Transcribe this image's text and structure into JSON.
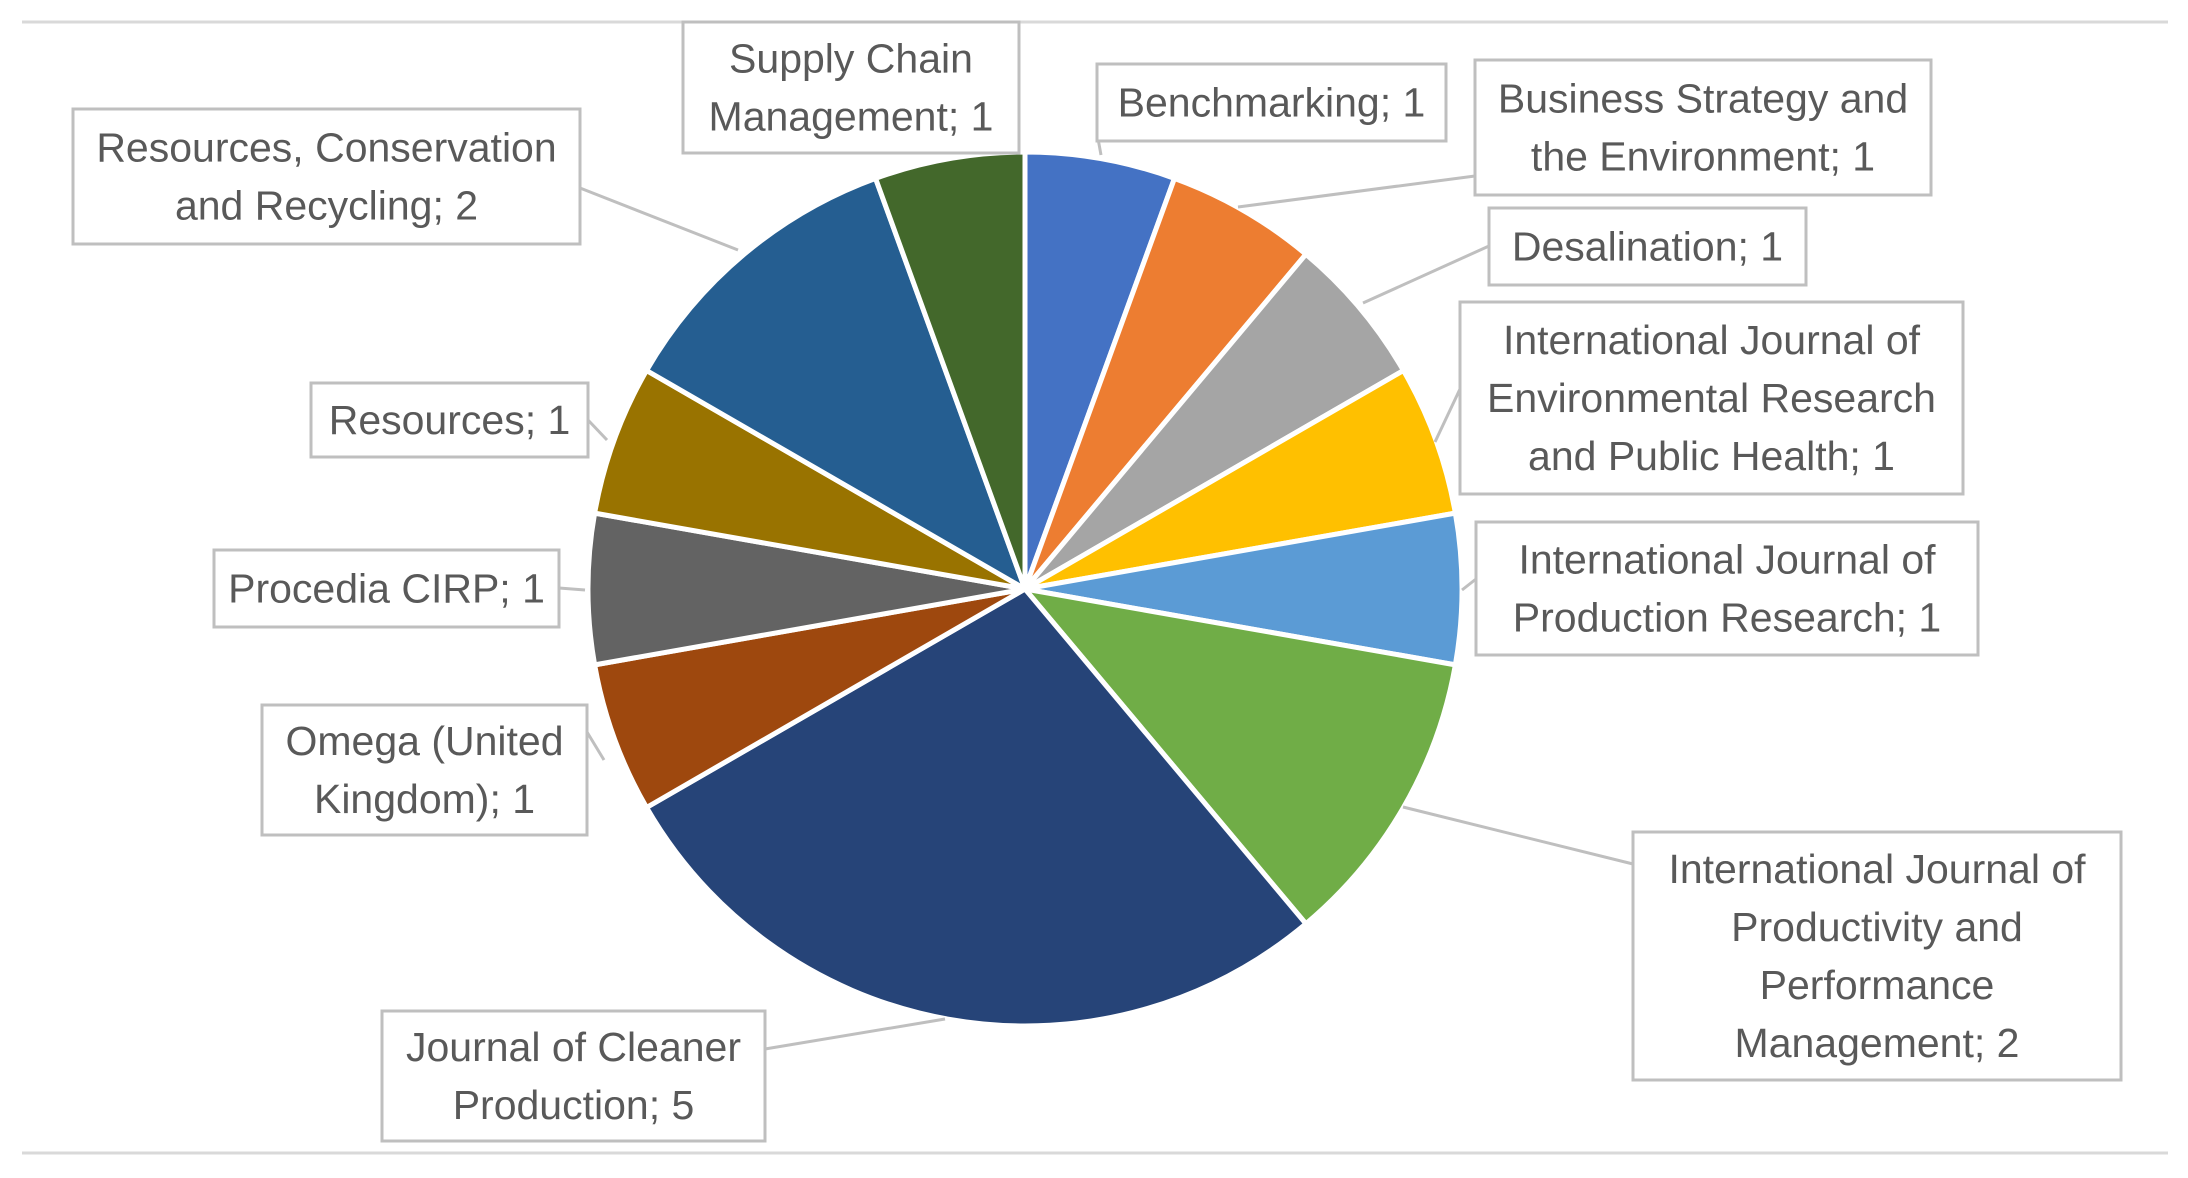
{
  "chart_data": {
    "type": "pie",
    "title": "",
    "legend": "none",
    "start_angle_deg": 0,
    "direction": "clockwise",
    "slices": [
      {
        "label": "Benchmarking",
        "value": 1,
        "color": "#4472C4",
        "label_text": "Benchmarking; 1"
      },
      {
        "label": "Business Strategy and the Environment",
        "value": 1,
        "color": "#ED7D31",
        "label_text": "Business Strategy and the Environment; 1"
      },
      {
        "label": "Desalination",
        "value": 1,
        "color": "#A5A5A5",
        "label_text": "Desalination; 1"
      },
      {
        "label": "International Journal of Environmental Research and Public Health",
        "value": 1,
        "color": "#FFC000",
        "label_text": "International Journal of Environmental Research and Public Health; 1"
      },
      {
        "label": "International Journal of Production Research",
        "value": 1,
        "color": "#5B9BD5",
        "label_text": "International Journal of Production Research; 1"
      },
      {
        "label": "International Journal of Productivity and Performance Management",
        "value": 2,
        "color": "#70AD47",
        "label_text": "International Journal of Productivity and Performance Management; 2"
      },
      {
        "label": "Journal of Cleaner Production",
        "value": 5,
        "color": "#264478",
        "label_text": "Journal of Cleaner Production; 5"
      },
      {
        "label": "Omega (United Kingdom)",
        "value": 1,
        "color": "#9E480E",
        "label_text": "Omega (United Kingdom); 1"
      },
      {
        "label": "Procedia CIRP",
        "value": 1,
        "color": "#636363",
        "label_text": "Procedia CIRP; 1"
      },
      {
        "label": "Resources",
        "value": 1,
        "color": "#997300",
        "label_text": "Resources; 1"
      },
      {
        "label": "Resources, Conservation and Recycling",
        "value": 2,
        "color": "#255E91",
        "label_text": "Resources, Conservation and Recycling; 2"
      },
      {
        "label": "Supply Chain Management",
        "value": 1,
        "color": "#43682B",
        "label_text": "Supply Chain Management; 1"
      }
    ]
  }
}
